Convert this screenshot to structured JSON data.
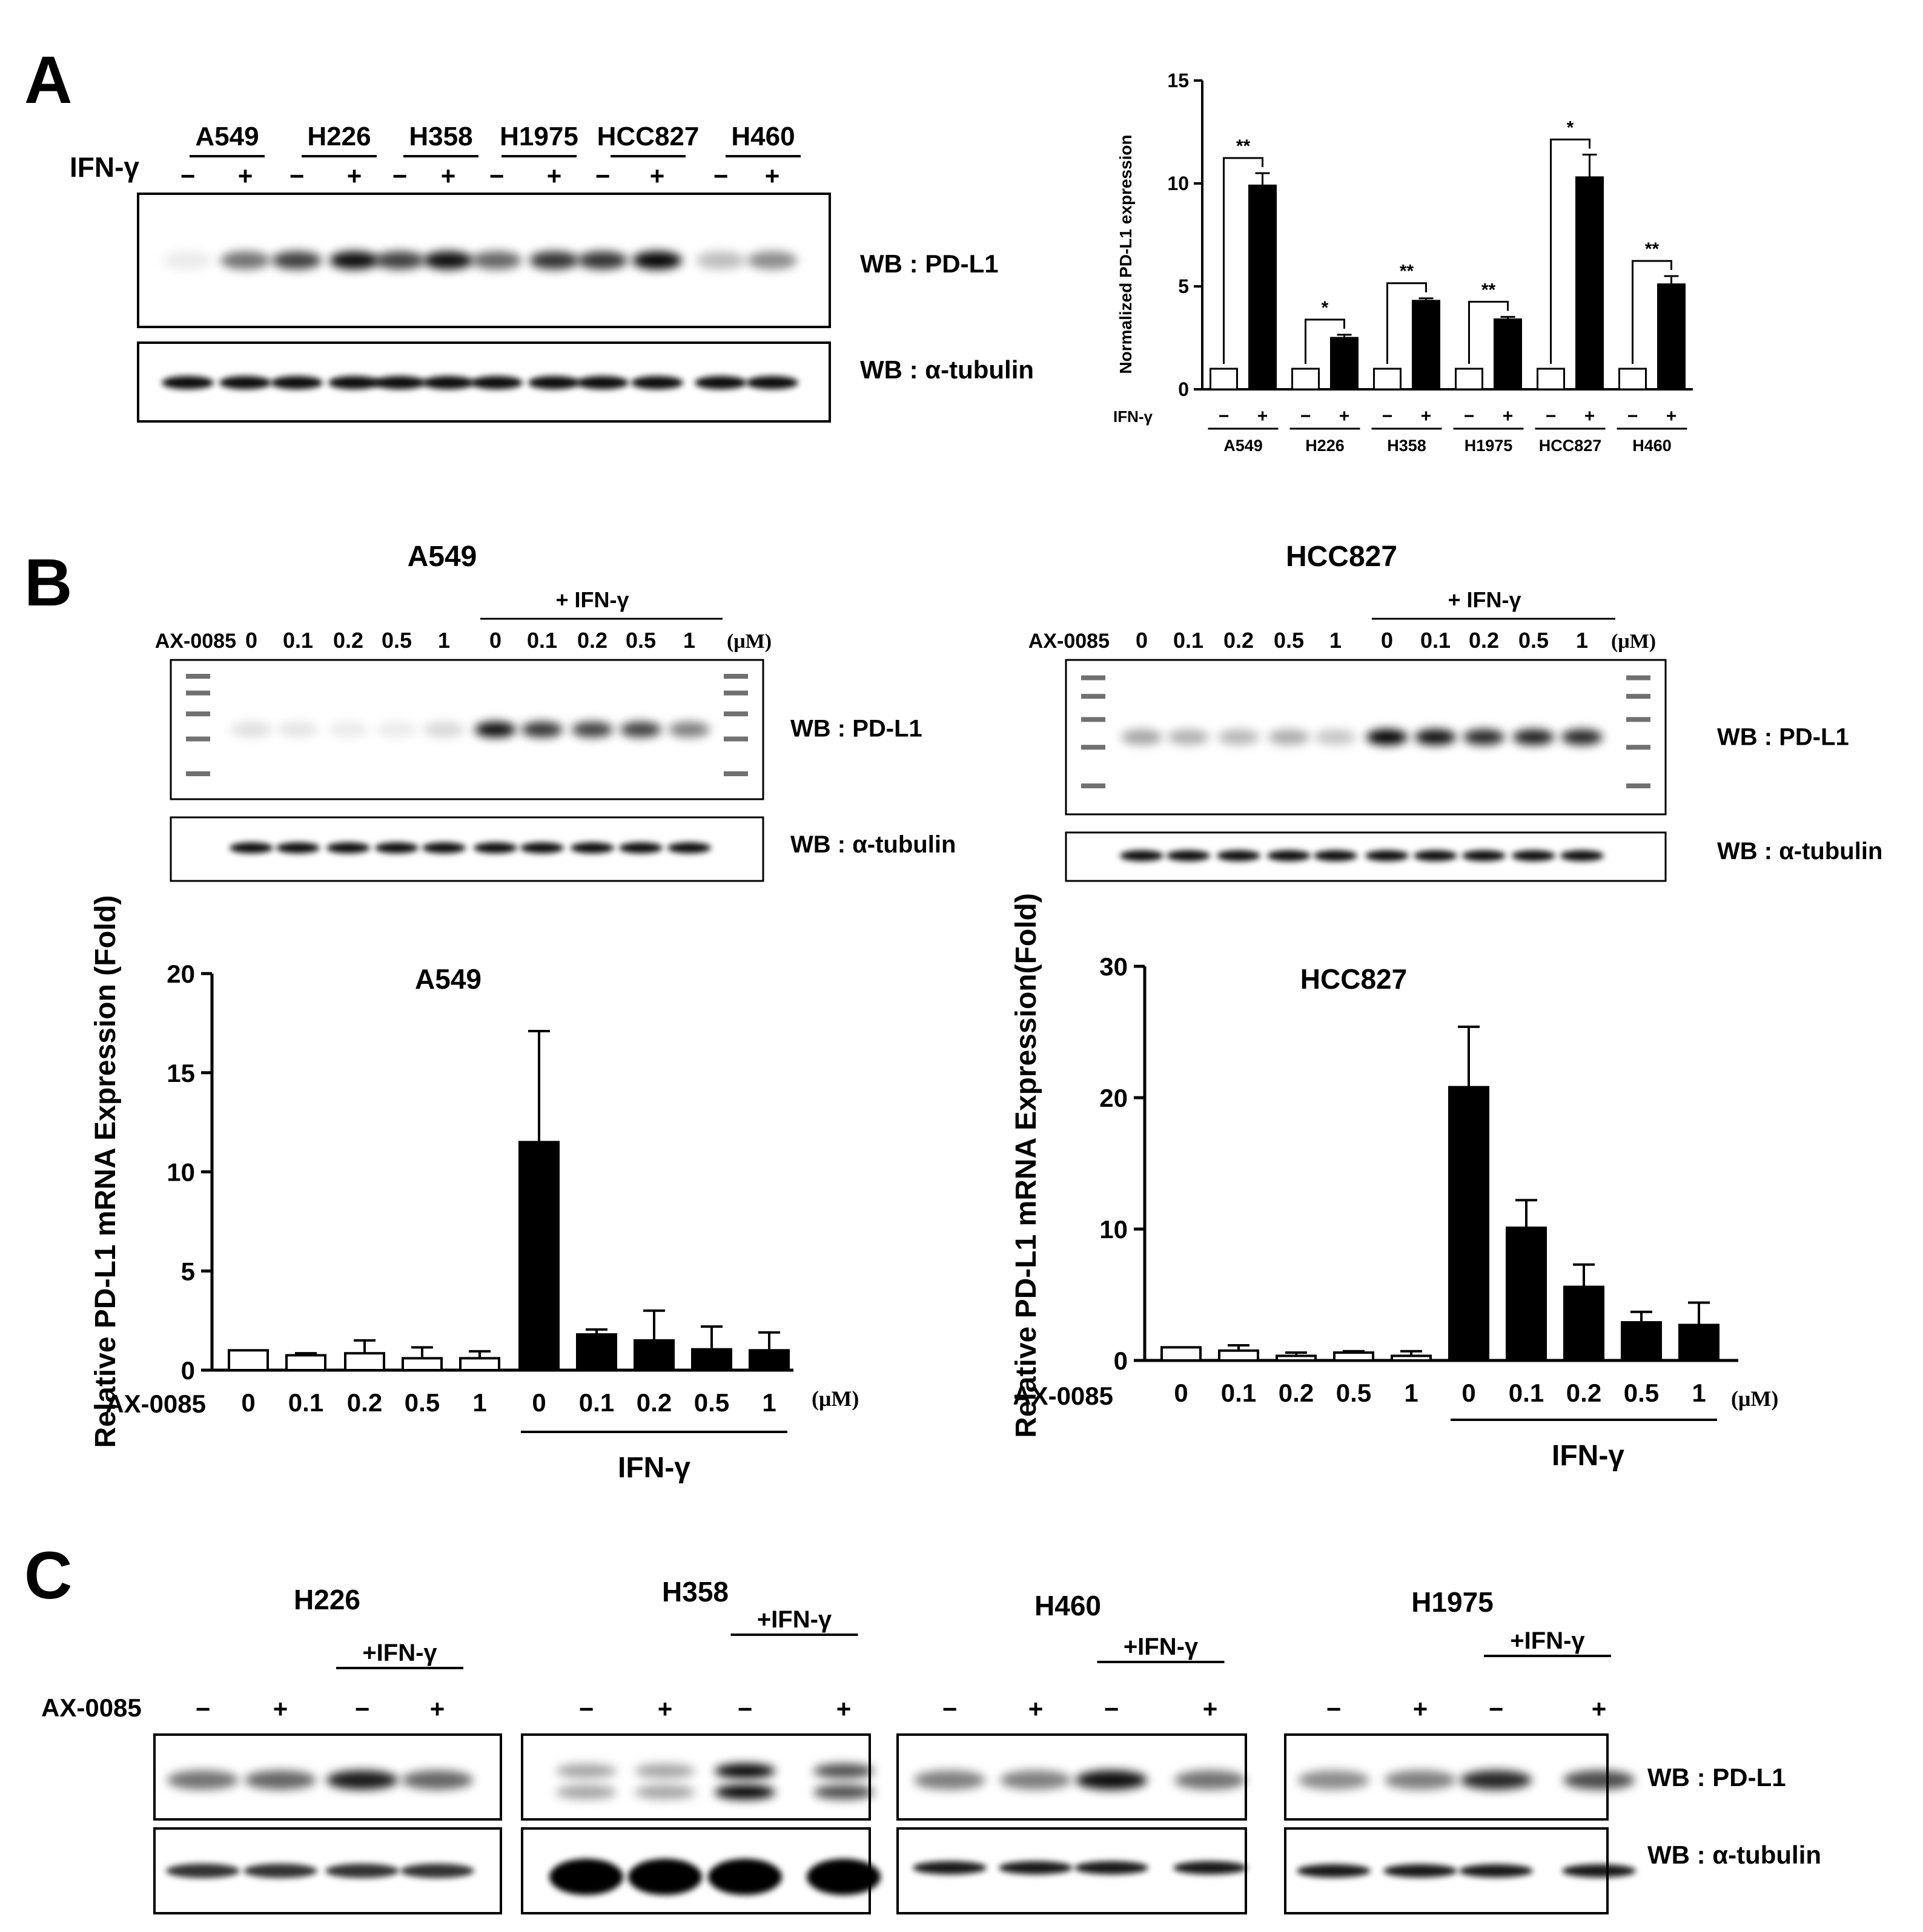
{
  "panel_labels": {
    "a": "A",
    "b": "B",
    "c": "C"
  },
  "panel_a": {
    "treatment_label": "IFN-γ",
    "cell_lines": [
      "A549",
      "H226",
      "H358",
      "H1975",
      "HCC827",
      "H460"
    ],
    "wb_pdl1": "WB : PD-L1",
    "wb_tubulin": "WB : α-tubulin",
    "minus": "−",
    "plus": "+"
  },
  "panel_b": {
    "blot_left_title": "A549",
    "blot_right_title": "HCC827",
    "drug_label": "AX-0085",
    "treatment_group_label": "+ IFN-γ",
    "doses": [
      "0",
      "0.1",
      "0.2",
      "0.5",
      "1",
      "0",
      "0.1",
      "0.2",
      "0.5",
      "1"
    ],
    "unit": "(μM)",
    "wb_pdl1": "WB : PD-L1",
    "wb_tubulin": "WB : α-tubulin"
  },
  "panel_c": {
    "cell_lines": [
      "H226",
      "H358",
      "H460",
      "H1975"
    ],
    "treatment_group_label": "+IFN-γ",
    "drug_label": "AX-0085",
    "signs": [
      "−",
      "+",
      "−",
      "+"
    ],
    "wb_pdl1": "WB : PD-L1",
    "wb_tubulin": "WB : α-tubulin"
  },
  "chart_data": [
    {
      "type": "bar",
      "title": "",
      "ylabel": "Normalized PD-L1 expression",
      "row_label": "IFN-γ",
      "categories": [
        "A549",
        "H226",
        "H358",
        "H1975",
        "HCC827",
        "H460"
      ],
      "series": [
        {
          "name": "−",
          "values": [
            1,
            1,
            1,
            1,
            1,
            1
          ],
          "errors": [
            0,
            0,
            0,
            0,
            0,
            0
          ],
          "color": "#ffffff"
        },
        {
          "name": "+",
          "values": [
            9.9,
            2.5,
            4.3,
            3.4,
            10.3,
            5.1
          ],
          "errors": [
            0.6,
            0.15,
            0.12,
            0.12,
            1.1,
            0.4
          ],
          "color": "#000000"
        }
      ],
      "significance": [
        "**",
        "*",
        "**",
        "**",
        "*",
        "**"
      ],
      "yticks": [
        0,
        5,
        10,
        15
      ],
      "ylim": [
        0,
        15
      ]
    },
    {
      "type": "bar",
      "title": "A549",
      "ylabel": "Relative PD-L1 mRNA Expression (Fold)",
      "xlabel": "AX-0085",
      "categories": [
        "0",
        "0.1",
        "0.2",
        "0.5",
        "1",
        "0",
        "0.1",
        "0.2",
        "0.5",
        "1"
      ],
      "values": [
        1,
        0.75,
        0.85,
        0.6,
        0.6,
        11.5,
        1.8,
        1.5,
        1.05,
        1.0
      ],
      "errors": [
        0,
        0.1,
        0.65,
        0.55,
        0.35,
        5.6,
        0.25,
        1.5,
        1.15,
        0.9
      ],
      "fill": [
        "#ffffff",
        "#ffffff",
        "#ffffff",
        "#ffffff",
        "#ffffff",
        "#000000",
        "#000000",
        "#000000",
        "#000000",
        "#000000"
      ],
      "group_label": "IFN-γ",
      "unit": "(μM)",
      "yticks": [
        0,
        5,
        10,
        15,
        20
      ],
      "ylim": [
        0,
        20
      ]
    },
    {
      "type": "bar",
      "title": "HCC827",
      "ylabel": "Relative PD-L1 mRNA Expression(Fold)",
      "xlabel": "AX-0085",
      "categories": [
        "0",
        "0.1",
        "0.2",
        "0.5",
        "1",
        "0",
        "0.1",
        "0.2",
        "0.5",
        "1"
      ],
      "values": [
        1,
        0.75,
        0.35,
        0.6,
        0.35,
        20.8,
        10.1,
        5.6,
        2.9,
        2.7
      ],
      "errors": [
        0,
        0.4,
        0.25,
        0.1,
        0.35,
        4.6,
        2.1,
        1.7,
        0.8,
        1.7
      ],
      "fill": [
        "#ffffff",
        "#ffffff",
        "#ffffff",
        "#ffffff",
        "#ffffff",
        "#000000",
        "#000000",
        "#000000",
        "#000000",
        "#000000"
      ],
      "group_label": "IFN-γ",
      "unit": "(μM)",
      "yticks": [
        0,
        10,
        20,
        30
      ],
      "ylim": [
        0,
        30
      ]
    }
  ]
}
